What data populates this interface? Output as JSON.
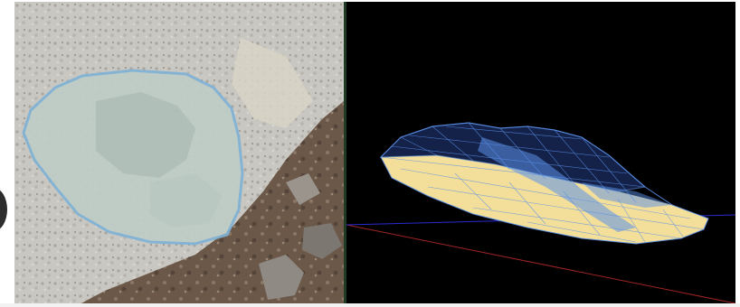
{
  "figure": {
    "left_panel": {
      "kind": "photo",
      "subject": "rock-on-gravel",
      "outline_color": "#7fb2d6",
      "overlay_color": "#c8d8d0"
    },
    "right_panel": {
      "kind": "3d-mesh-view",
      "background": "#000000",
      "mesh_fill_color": "#f4df9a",
      "mesh_wire_color": "#5a8fe8",
      "axis_x_color": "#a02424",
      "axis_y_color": "#2a2ad0"
    }
  }
}
